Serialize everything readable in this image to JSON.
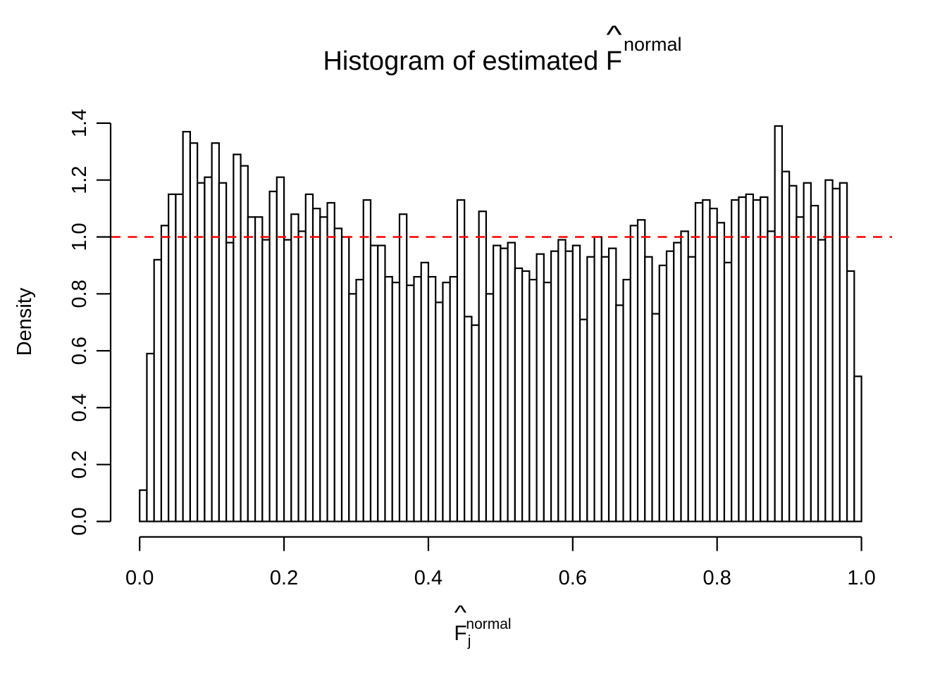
{
  "chart_data": {
    "type": "histogram",
    "title": {
      "prefix": "Histogram of estimated ",
      "f": "F",
      "hat": "^",
      "sup": "normal"
    },
    "xlabel": {
      "f": "F",
      "hat": "^",
      "sub": "j",
      "sup": "normal"
    },
    "ylabel": "Density",
    "x_start": 0.0,
    "bin_width": 0.01,
    "densities": [
      0.11,
      0.59,
      0.92,
      1.04,
      1.15,
      1.15,
      1.37,
      1.33,
      1.19,
      1.21,
      1.33,
      1.19,
      0.98,
      1.29,
      1.25,
      1.07,
      1.07,
      0.99,
      1.16,
      1.21,
      0.99,
      1.08,
      1.02,
      1.15,
      1.1,
      1.07,
      1.12,
      1.03,
      1.0,
      0.8,
      0.85,
      1.13,
      0.97,
      0.97,
      0.86,
      0.84,
      1.08,
      0.83,
      0.86,
      0.91,
      0.86,
      0.77,
      0.84,
      0.86,
      1.13,
      0.72,
      0.69,
      1.09,
      0.8,
      0.97,
      0.96,
      0.98,
      0.89,
      0.88,
      0.85,
      0.94,
      0.84,
      0.95,
      0.99,
      0.95,
      0.97,
      0.71,
      0.93,
      1.0,
      0.93,
      0.96,
      0.76,
      0.85,
      1.04,
      1.06,
      0.93,
      0.73,
      0.9,
      0.95,
      0.98,
      1.02,
      0.93,
      1.12,
      1.13,
      1.1,
      1.05,
      0.91,
      1.13,
      1.14,
      1.15,
      1.13,
      1.14,
      1.02,
      1.39,
      1.23,
      1.18,
      1.07,
      1.19,
      1.11,
      0.99,
      1.2,
      1.17,
      1.19,
      0.88,
      0.51
    ],
    "xlim": [
      0.0,
      1.0
    ],
    "ylim": [
      0.0,
      1.4
    ],
    "x_ticks": {
      "values": [
        0.0,
        0.2,
        0.4,
        0.6,
        0.8,
        1.0
      ],
      "labels": [
        "0.0",
        "0.2",
        "0.4",
        "0.6",
        "0.8",
        "1.0"
      ]
    },
    "y_ticks": {
      "values": [
        0.0,
        0.2,
        0.4,
        0.6,
        0.8,
        1.0,
        1.2,
        1.4
      ],
      "labels": [
        "0.0",
        "0.2",
        "0.4",
        "0.6",
        "0.8",
        "1.0",
        "1.2",
        "1.4"
      ]
    },
    "reference_line": {
      "value": 1.0,
      "color": "#FF0000",
      "style": "dashed"
    },
    "bar_fill": "#FFFFFF",
    "bar_stroke": "#000000",
    "axis_color": "#000000",
    "grid": "off",
    "legend": "none"
  }
}
